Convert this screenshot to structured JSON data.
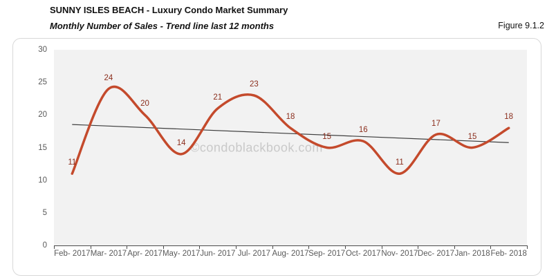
{
  "header": {
    "title": "SUNNY ISLES BEACH - Luxury Condo Market Summary",
    "subtitle": "Monthly Number of Sales - Trend line last 12 months",
    "figure_label": "Figure 9.1.2"
  },
  "watermark": "©condoblackbook.com",
  "chart_data": {
    "type": "line",
    "smooth": true,
    "title": "Monthly Number of Sales - Trend line last 12 months",
    "categories": [
      "Feb- 2017",
      "Mar- 2017",
      "Apr- 2017",
      "May- 2017",
      "Jun- 2017",
      "Jul- 2017",
      "Aug- 2017",
      "Sep- 2017",
      "Oct- 2017",
      "Nov- 2017",
      "Dec- 2017",
      "Jan- 2018",
      "Feb- 2018"
    ],
    "series": [
      {
        "name": "Monthly Number of Sales",
        "values": [
          11,
          24,
          20,
          14,
          21,
          23,
          18,
          15,
          16,
          11,
          17,
          15,
          18
        ],
        "color": "#c44a2c",
        "stroke_width": 3.5,
        "data_labels": true
      },
      {
        "name": "Trend line last 12 months",
        "trend": {
          "start": 18.54,
          "end": 15.77
        },
        "color": "#3d3d3d",
        "stroke_width": 1.2,
        "data_labels": false
      }
    ],
    "xlabel": "",
    "ylabel": "",
    "ylim": [
      0,
      30
    ],
    "y_ticks": [
      0,
      5,
      10,
      15,
      20,
      25,
      30
    ],
    "grid": false,
    "legend_position": "none",
    "colors": {
      "plot_bg": "#f2f2f2",
      "axis": "#4a4a4a",
      "tick_label": "#595959",
      "data_label": "#8b2e1d",
      "watermark": "#c9c9c9",
      "box_border": "#d8d8d8"
    }
  }
}
